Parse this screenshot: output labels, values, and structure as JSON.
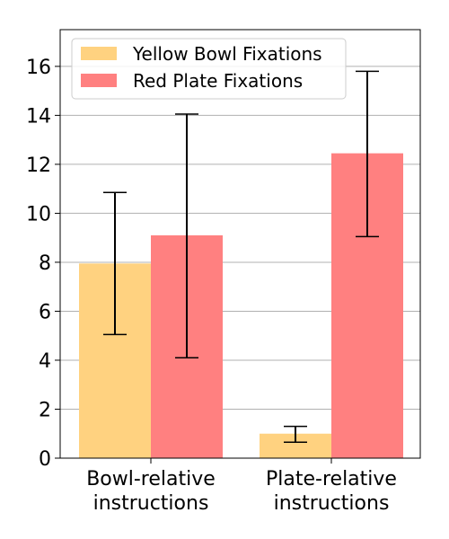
{
  "chart_data": {
    "type": "bar",
    "categories": [
      "Bowl-relative\ninstructions",
      "Plate-relative\ninstructions"
    ],
    "series": [
      {
        "name": "Yellow Bowl Fixations",
        "color": "#ffd280",
        "values": [
          7.95,
          1.0
        ],
        "error_low": [
          5.05,
          0.65
        ],
        "error_high": [
          10.85,
          1.3
        ]
      },
      {
        "name": "Red Plate Fixations",
        "color": "#ff8080",
        "values": [
          9.1,
          12.45
        ],
        "error_low": [
          4.1,
          9.05
        ],
        "error_high": [
          14.05,
          15.8
        ]
      }
    ],
    "ylim": [
      0,
      17.5
    ],
    "yticks": [
      0,
      2,
      4,
      6,
      8,
      10,
      12,
      14,
      16
    ],
    "grid": true,
    "legend": "top-left"
  }
}
